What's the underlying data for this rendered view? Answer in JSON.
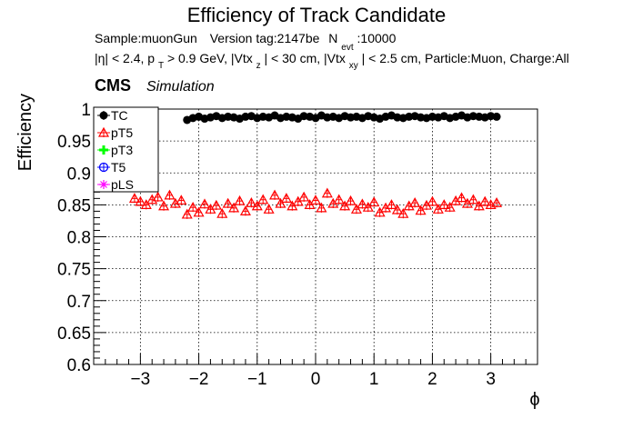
{
  "title": "Efficiency of Track Candidate",
  "info_line1": {
    "sample": "Sample:muonGun",
    "version": "Version tag:2147be",
    "nevt_label": "N",
    "nevt_sub": "evt",
    "nevt_value": ":10000"
  },
  "info_line2": {
    "eta": "|η| < 2.4, p",
    "pt_sub": "T",
    "pt_rest": " > 0.9 GeV, |Vtx",
    "vz_sub": "z",
    "vz_rest": "| < 30 cm, |Vtx",
    "vxy_sub": "xy",
    "vxy_rest": "| < 2.5 cm, Particle:Muon, Charge:All"
  },
  "cms_label": "CMS",
  "cms_sublabel": "Simulation",
  "colors": {
    "TC": "#000000",
    "pT5": "#ff0000",
    "pT3": "#00ff00",
    "T5": "#0000ff",
    "pLS": "#ff00ff"
  },
  "chart_data": {
    "type": "scatter",
    "title": "Efficiency of Track Candidate",
    "xlabel": "ϕ",
    "ylabel": "Efficiency",
    "xlim": [
      -3.8,
      3.8
    ],
    "ylim": [
      0.6,
      1.0
    ],
    "x_ticks": [
      -3,
      -2,
      -1,
      0,
      1,
      2,
      3
    ],
    "x_tick_labels": [
      "−3",
      "−2",
      "−1",
      "0",
      "1",
      "2",
      "3"
    ],
    "y_ticks": [
      0.6,
      0.65,
      0.7,
      0.75,
      0.8,
      0.85,
      0.9,
      0.95,
      1.0
    ],
    "y_tick_labels": [
      "0.6",
      "0.65",
      "0.7",
      "0.75",
      "0.8",
      "0.85",
      "0.9",
      "0.95",
      "1"
    ],
    "grid": true,
    "legend_position": "top-left",
    "series": [
      {
        "name": "TC",
        "marker": "circle-filled",
        "x": [
          -2.2,
          -2.1,
          -2.0,
          -1.9,
          -1.8,
          -1.7,
          -1.6,
          -1.5,
          -1.4,
          -1.3,
          -1.2,
          -1.1,
          -1.0,
          -0.9,
          -0.8,
          -0.7,
          -0.6,
          -0.5,
          -0.4,
          -0.3,
          -0.2,
          -0.1,
          0.0,
          0.1,
          0.2,
          0.3,
          0.4,
          0.5,
          0.6,
          0.7,
          0.8,
          0.9,
          1.0,
          1.1,
          1.2,
          1.3,
          1.4,
          1.5,
          1.6,
          1.7,
          1.8,
          1.9,
          2.0,
          2.1,
          2.2,
          2.3,
          2.4,
          2.5,
          2.6,
          2.7,
          2.8,
          2.9,
          3.0,
          3.1
        ],
        "y": [
          0.983,
          0.986,
          0.988,
          0.985,
          0.987,
          0.989,
          0.986,
          0.988,
          0.987,
          0.985,
          0.988,
          0.989,
          0.986,
          0.988,
          0.987,
          0.99,
          0.986,
          0.988,
          0.987,
          0.985,
          0.989,
          0.988,
          0.986,
          0.99,
          0.987,
          0.988,
          0.986,
          0.989,
          0.987,
          0.988,
          0.986,
          0.989,
          0.987,
          0.985,
          0.988,
          0.99,
          0.987,
          0.986,
          0.988,
          0.989,
          0.987,
          0.986,
          0.988,
          0.987,
          0.989,
          0.986,
          0.988,
          0.99,
          0.987,
          0.989,
          0.988,
          0.987,
          0.989,
          0.988
        ]
      },
      {
        "name": "pT5",
        "marker": "triangle-open",
        "x": [
          -3.1,
          -3.0,
          -2.9,
          -2.8,
          -2.7,
          -2.6,
          -2.5,
          -2.4,
          -2.3,
          -2.2,
          -2.1,
          -2.0,
          -1.9,
          -1.8,
          -1.7,
          -1.6,
          -1.5,
          -1.4,
          -1.3,
          -1.2,
          -1.1,
          -1.0,
          -0.9,
          -0.8,
          -0.7,
          -0.6,
          -0.5,
          -0.4,
          -0.3,
          -0.2,
          -0.1,
          0.0,
          0.1,
          0.2,
          0.3,
          0.4,
          0.5,
          0.6,
          0.7,
          0.8,
          0.9,
          1.0,
          1.1,
          1.2,
          1.3,
          1.4,
          1.5,
          1.6,
          1.7,
          1.8,
          1.9,
          2.0,
          2.1,
          2.2,
          2.3,
          2.4,
          2.5,
          2.6,
          2.7,
          2.8,
          2.9,
          3.0,
          3.1
        ],
        "y": [
          0.86,
          0.855,
          0.85,
          0.858,
          0.862,
          0.848,
          0.865,
          0.852,
          0.857,
          0.835,
          0.846,
          0.838,
          0.851,
          0.843,
          0.849,
          0.836,
          0.852,
          0.845,
          0.856,
          0.84,
          0.853,
          0.848,
          0.858,
          0.843,
          0.865,
          0.852,
          0.86,
          0.848,
          0.855,
          0.862,
          0.85,
          0.857,
          0.845,
          0.868,
          0.852,
          0.858,
          0.848,
          0.856,
          0.843,
          0.851,
          0.846,
          0.854,
          0.838,
          0.845,
          0.85,
          0.842,
          0.836,
          0.848,
          0.853,
          0.841,
          0.849,
          0.855,
          0.843,
          0.85,
          0.846,
          0.856,
          0.861,
          0.852,
          0.858,
          0.848,
          0.855,
          0.85,
          0.853
        ]
      },
      {
        "name": "pT3",
        "marker": "cross-filled",
        "x": [],
        "y": []
      },
      {
        "name": "T5",
        "marker": "circle-open",
        "x": [],
        "y": []
      },
      {
        "name": "pLS",
        "marker": "star",
        "x": [],
        "y": []
      }
    ]
  }
}
